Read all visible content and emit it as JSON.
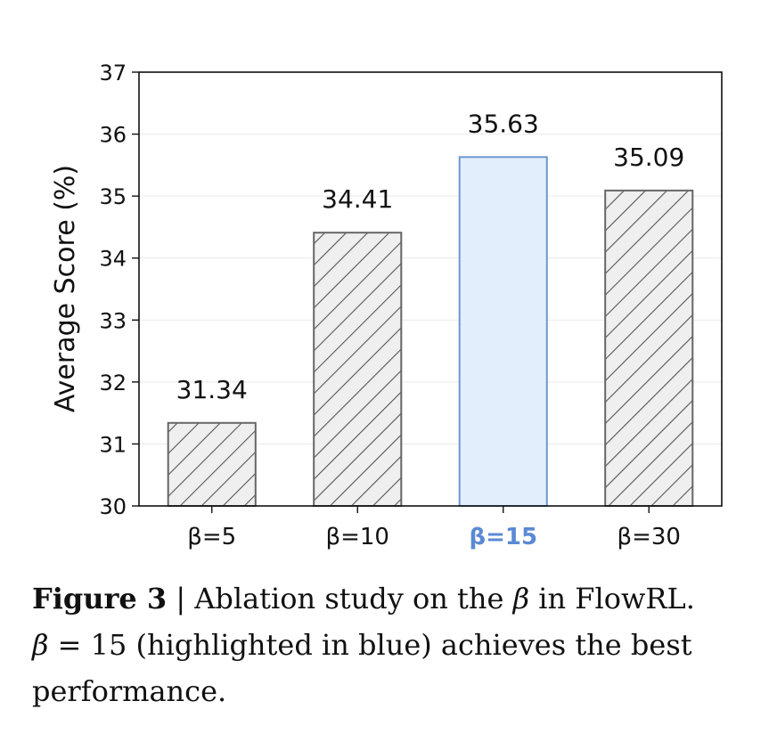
{
  "chart_data": {
    "type": "bar",
    "categories": [
      "β=5",
      "β=10",
      "β=15",
      "β=30"
    ],
    "values": [
      31.34,
      34.41,
      35.63,
      35.09
    ],
    "value_labels": [
      "31.34",
      "34.41",
      "35.63",
      "35.09"
    ],
    "highlighted_index": 2,
    "title": "",
    "xlabel": "",
    "ylabel": "Average Score (%)",
    "ylim": [
      30,
      37
    ],
    "yticks": [
      30,
      31,
      32,
      33,
      34,
      35,
      36,
      37
    ],
    "grid": "y-light",
    "legend": "none",
    "bar_style": {
      "normal_fill": "#efefef",
      "normal_stroke": "#666666",
      "normal_pattern": "diagonal-hatch",
      "highlight_fill": "#e3eefc",
      "highlight_stroke": "#6f97cf"
    },
    "highlight_label_color": "#5b8ad4"
  },
  "caption": {
    "label": "Figure 3",
    "separator": " | ",
    "line1_text": "Ablation study on the ",
    "beta_symbol": "β",
    "line1_end": " in FlowRL.",
    "line2_text": " = 15 (highlighted in blue) achieves the best performance."
  }
}
